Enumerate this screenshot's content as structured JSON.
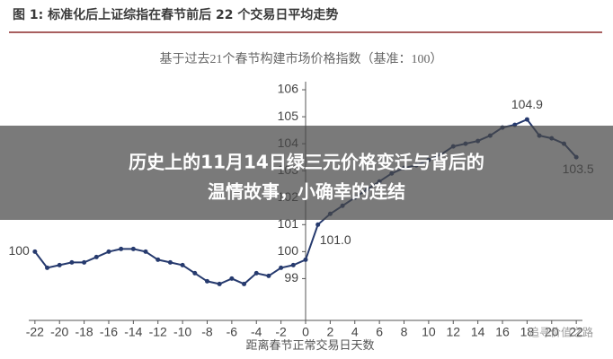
{
  "chart_data": {
    "type": "line",
    "title": "图 1:  标准化后上证综指在春节前后 22 个交易日平均走势",
    "subtitle": "基于过去21个春节构建市场价格指数（基准：100）",
    "x_label": "距离春节正常交易日天数",
    "x": [
      -22,
      -21,
      -20,
      -19,
      -18,
      -17,
      -16,
      -15,
      -14,
      -13,
      -12,
      -11,
      -10,
      -9,
      -8,
      -7,
      -6,
      -5,
      -4,
      -3,
      -2,
      -1,
      0,
      1,
      2,
      3,
      4,
      5,
      6,
      7,
      8,
      9,
      10,
      11,
      12,
      13,
      14,
      15,
      16,
      17,
      18,
      19,
      20,
      21,
      22
    ],
    "series": [
      {
        "color": "#263a6e",
        "values": [
          100,
          99.4,
          99.5,
          99.6,
          99.6,
          99.8,
          100.0,
          100.1,
          100.1,
          100.0,
          99.7,
          99.6,
          99.5,
          99.2,
          98.9,
          98.8,
          99.0,
          98.8,
          99.2,
          99.1,
          99.4,
          99.5,
          99.7,
          101.0,
          101.4,
          101.7,
          102.0,
          102.3,
          102.6,
          102.9,
          103.1,
          103.2,
          103.4,
          103.6,
          103.9,
          104.0,
          104.1,
          104.3,
          104.6,
          104.7,
          104.9,
          104.3,
          104.2,
          104.0,
          103.5
        ]
      }
    ],
    "annotations": [
      "100",
      "104.9",
      "101.0",
      "103.5"
    ],
    "xlim": [
      -22.5,
      22.5
    ],
    "xticks": [
      -22,
      -20,
      -18,
      -16,
      -14,
      -12,
      -10,
      -8,
      -6,
      -4,
      -2,
      0,
      2,
      4,
      6,
      8,
      10,
      12,
      14,
      16,
      18,
      20,
      22
    ],
    "ylim": [
      97.45,
      106.3
    ],
    "yticks": [
      99,
      100,
      101,
      102,
      103,
      104,
      105,
      106
    ]
  },
  "banner": {
    "lines": [
      "历史上的11月14日绿三元价格变迁与背后的",
      "温情故事，小确幸的连结"
    ]
  },
  "watermark": "追寻价值之路"
}
